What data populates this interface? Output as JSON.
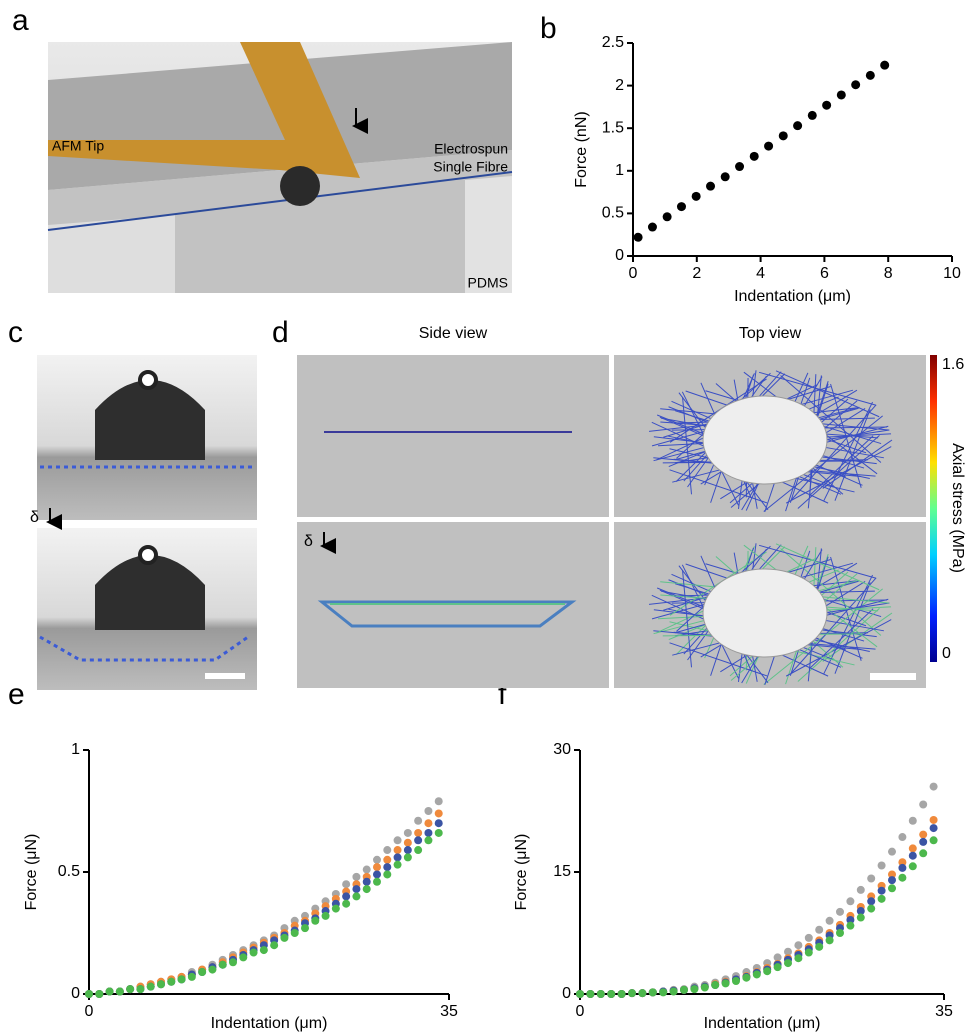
{
  "panel_labels": [
    "a",
    "b",
    "c",
    "d",
    "e",
    "f"
  ],
  "panel_a": {
    "tip_label": "AFM Tip",
    "fibre_label": [
      "Electrospun",
      "Single Fibre"
    ],
    "substrate_label": "PDMS"
  },
  "panel_c": {
    "delta_label": "δ"
  },
  "panel_d": {
    "side_title": "Side view",
    "top_title": "Top view",
    "delta_label": "δ",
    "colorbar": {
      "label": "Axial stress (MPa)",
      "ticks": [
        1.6,
        0
      ],
      "lim": [
        0,
        1.6
      ]
    }
  },
  "chart_data": [
    {
      "type": "scatter",
      "x_label": "Indentation (μm)",
      "y_label": "Force (nN)",
      "color": "#000000",
      "x": [
        0.16,
        0.61,
        1.07,
        1.52,
        1.98,
        2.43,
        2.89,
        3.34,
        3.8,
        4.25,
        4.71,
        5.16,
        5.62,
        6.07,
        6.53,
        6.98,
        7.44,
        7.89
      ],
      "values": [
        0.22,
        0.34,
        0.46,
        0.58,
        0.7,
        0.82,
        0.93,
        1.05,
        1.17,
        1.29,
        1.41,
        1.53,
        1.65,
        1.77,
        1.89,
        2.01,
        2.12,
        2.24
      ],
      "xlim": [
        0,
        10
      ],
      "xticks": [
        0,
        2,
        4,
        6,
        8,
        10
      ],
      "ylim": [
        0,
        2.5
      ],
      "yticks": [
        0,
        0.5,
        1,
        1.5,
        2,
        2.5
      ]
    },
    {
      "type": "scatter",
      "x_label": "Indentation (μm)",
      "y_label": "Force (μN)",
      "x": [
        0,
        1,
        2,
        3,
        4,
        5,
        6,
        7,
        8,
        9,
        10,
        11,
        12,
        13,
        14,
        15,
        16,
        17,
        18,
        19,
        20,
        21,
        22,
        23,
        24,
        25,
        26,
        27,
        28,
        29,
        30,
        31,
        32,
        33,
        34
      ],
      "series": [
        {
          "color": "#a6a6a6",
          "values": [
            0,
            0,
            0.01,
            0.01,
            0.02,
            0.03,
            0.04,
            0.05,
            0.06,
            0.07,
            0.09,
            0.1,
            0.12,
            0.14,
            0.16,
            0.18,
            0.2,
            0.22,
            0.24,
            0.27,
            0.3,
            0.32,
            0.35,
            0.38,
            0.41,
            0.45,
            0.48,
            0.51,
            0.55,
            0.59,
            0.63,
            0.66,
            0.71,
            0.75,
            0.79
          ]
        },
        {
          "color": "#f08a3c",
          "values": [
            0,
            0,
            0.01,
            0.01,
            0.02,
            0.03,
            0.04,
            0.05,
            0.06,
            0.07,
            0.08,
            0.1,
            0.11,
            0.13,
            0.15,
            0.17,
            0.19,
            0.21,
            0.23,
            0.25,
            0.28,
            0.3,
            0.33,
            0.36,
            0.39,
            0.42,
            0.45,
            0.48,
            0.52,
            0.55,
            0.59,
            0.62,
            0.66,
            0.7,
            0.74
          ]
        },
        {
          "color": "#3b54a4",
          "values": [
            0,
            0,
            0.01,
            0.01,
            0.02,
            0.02,
            0.03,
            0.04,
            0.05,
            0.06,
            0.08,
            0.09,
            0.11,
            0.12,
            0.14,
            0.16,
            0.18,
            0.2,
            0.22,
            0.24,
            0.26,
            0.29,
            0.31,
            0.34,
            0.37,
            0.4,
            0.43,
            0.46,
            0.49,
            0.52,
            0.56,
            0.59,
            0.63,
            0.66,
            0.7
          ]
        },
        {
          "color": "#4cb84c",
          "values": [
            0,
            0,
            0.01,
            0.01,
            0.02,
            0.02,
            0.03,
            0.04,
            0.05,
            0.06,
            0.07,
            0.09,
            0.1,
            0.12,
            0.13,
            0.15,
            0.17,
            0.18,
            0.2,
            0.23,
            0.25,
            0.27,
            0.3,
            0.32,
            0.35,
            0.37,
            0.4,
            0.43,
            0.46,
            0.49,
            0.53,
            0.56,
            0.59,
            0.63,
            0.66
          ]
        }
      ],
      "xlim": [
        0,
        35
      ],
      "xticks": [
        0,
        35
      ],
      "ylim": [
        0,
        1
      ],
      "yticks": [
        0,
        0.5,
        1
      ]
    },
    {
      "type": "scatter",
      "x_label": "Indentation (μm)",
      "y_label": "Force (μN)",
      "x": [
        0,
        1,
        2,
        3,
        4,
        5,
        6,
        7,
        8,
        9,
        10,
        11,
        12,
        13,
        14,
        15,
        16,
        17,
        18,
        19,
        20,
        21,
        22,
        23,
        24,
        25,
        26,
        27,
        28,
        29,
        30,
        31,
        32,
        33,
        34
      ],
      "series": [
        {
          "color": "#a6a6a6",
          "values": [
            0,
            0,
            0,
            0,
            0,
            0.1,
            0.1,
            0.2,
            0.3,
            0.5,
            0.6,
            0.9,
            1.1,
            1.4,
            1.8,
            2.2,
            2.7,
            3.2,
            3.8,
            4.5,
            5.2,
            6,
            6.9,
            7.9,
            9,
            10.1,
            11.4,
            12.8,
            14.2,
            15.8,
            17.5,
            19.3,
            21.3,
            23.3,
            25.5
          ]
        },
        {
          "color": "#f08a3c",
          "values": [
            0,
            0,
            0,
            0,
            0,
            0.1,
            0.1,
            0.2,
            0.3,
            0.4,
            0.5,
            0.7,
            0.9,
            1.2,
            1.5,
            1.8,
            2.2,
            2.7,
            3.2,
            3.7,
            4.4,
            5,
            5.8,
            6.6,
            7.5,
            8.5,
            9.6,
            10.7,
            12,
            13.3,
            14.7,
            16.2,
            17.9,
            19.6,
            21.4
          ]
        },
        {
          "color": "#3b54a4",
          "values": [
            0,
            0,
            0,
            0,
            0,
            0.1,
            0.1,
            0.2,
            0.3,
            0.4,
            0.5,
            0.7,
            0.9,
            1.1,
            1.4,
            1.8,
            2.1,
            2.6,
            3,
            3.6,
            4.2,
            4.8,
            5.5,
            6.3,
            7.2,
            8.1,
            9.1,
            10.2,
            11.4,
            12.7,
            14,
            15.5,
            17,
            18.7,
            20.4
          ]
        },
        {
          "color": "#4cb84c",
          "values": [
            0,
            0,
            0,
            0,
            0,
            0.1,
            0.1,
            0.2,
            0.2,
            0.3,
            0.5,
            0.6,
            0.8,
            1.1,
            1.3,
            1.6,
            2,
            2.4,
            2.8,
            3.3,
            3.8,
            4.4,
            5.1,
            5.8,
            6.6,
            7.5,
            8.4,
            9.4,
            10.5,
            11.7,
            13,
            14.3,
            15.7,
            17.3,
            18.9
          ]
        }
      ],
      "xlim": [
        0,
        35
      ],
      "xticks": [
        0,
        35
      ],
      "ylim": [
        0,
        30
      ],
      "yticks": [
        0,
        15,
        30
      ]
    }
  ]
}
